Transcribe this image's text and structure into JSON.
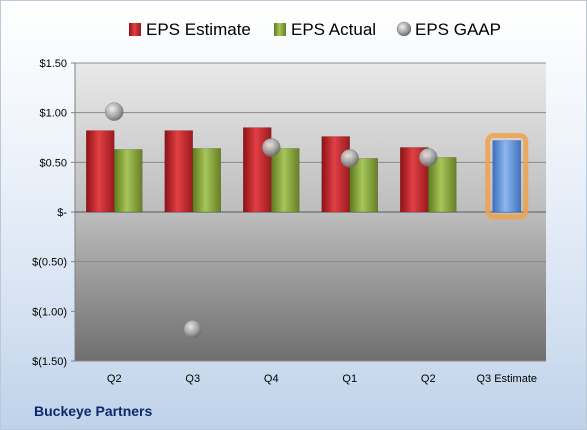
{
  "company": "Buckeye Partners",
  "chart_data": {
    "type": "bar",
    "categories": [
      "Q2",
      "Q3",
      "Q4",
      "Q1",
      "Q2",
      "Q3 Estimate"
    ],
    "series": [
      {
        "name": "EPS Estimate",
        "kind": "bar",
        "color": "#c0282d",
        "values": [
          0.82,
          0.82,
          0.85,
          0.76,
          0.65,
          null
        ]
      },
      {
        "name": "EPS Actual",
        "kind": "bar",
        "color": "#86a83a",
        "values": [
          0.63,
          0.64,
          0.64,
          0.54,
          0.55,
          null
        ]
      },
      {
        "name": "EPS GAAP",
        "kind": "marker",
        "color": "#9a9a9a",
        "values": [
          1.01,
          -1.18,
          0.65,
          0.54,
          0.55,
          null
        ]
      },
      {
        "name": "Q3 Estimate",
        "kind": "bar",
        "color": "#5b8fd6",
        "highlight": "#f0a24b",
        "values": [
          null,
          null,
          null,
          null,
          null,
          0.72
        ]
      }
    ],
    "ylim": [
      -1.5,
      1.5
    ],
    "yticks": [
      1.5,
      1.0,
      0.5,
      0,
      -0.5,
      -1.0,
      -1.5
    ],
    "ytick_labels": [
      "$1.50",
      "$1.00",
      "$0.50",
      "$-",
      "$(0.50)",
      "$(1.00)",
      "$(1.50)"
    ],
    "legend": [
      "EPS Estimate",
      "EPS Actual",
      "EPS GAAP"
    ],
    "legend_position": "top",
    "grid": true
  }
}
